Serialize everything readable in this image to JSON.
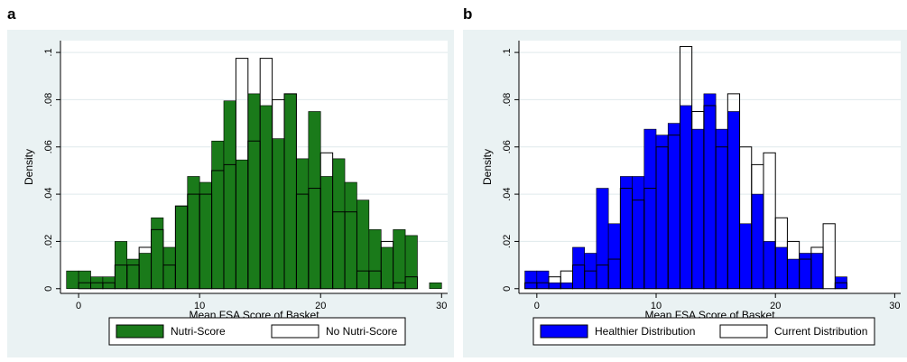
{
  "panel_letters": [
    "a",
    "b"
  ],
  "colors": {
    "panel_bg": "#eaf2f3",
    "plot_bg": "#ffffff",
    "grid": "#dfe9ec",
    "bar_outline": "#000000",
    "green": "#1a7a1a",
    "blue": "#0000ff",
    "outline_fill": "none"
  },
  "chart_data": [
    {
      "type": "histogram",
      "panel": "a",
      "xlabel": "Mean FSA Score of Basket",
      "ylabel": "Density",
      "xlim": [
        -1.5,
        30.5
      ],
      "ylim": [
        -0.002,
        0.105
      ],
      "xticks": [
        0,
        10,
        20,
        30
      ],
      "yticks": [
        0,
        0.02,
        0.04,
        0.06,
        0.08,
        0.1
      ],
      "ytick_labels": [
        "0",
        ".02",
        ".04",
        ".06",
        ".08",
        ".1"
      ],
      "grid": "horizontal",
      "legend_position": "bottom",
      "bin_start": -1,
      "bin_width": 1,
      "series": [
        {
          "name": "Nutri-Score",
          "style": "filled",
          "color": "#1a7a1a",
          "values": [
            0.0075,
            0.0075,
            0.005,
            0.005,
            0.02,
            0.0125,
            0.015,
            0.03,
            0.0175,
            0.035,
            0.0475,
            0.045,
            0.0625,
            0.0795,
            0.0545,
            0.0825,
            0.0775,
            0.0635,
            0.0825,
            0.055,
            0.075,
            0.0475,
            0.055,
            0.045,
            0.0375,
            0.025,
            0.0175,
            0.025,
            0.0225,
            0,
            0.0025
          ]
        },
        {
          "name": "No Nutri-Score",
          "style": "outline",
          "color": "none",
          "values": [
            0,
            0.0025,
            0.0025,
            0.0025,
            0.01,
            0.01,
            0.0175,
            0.025,
            0.01,
            0.035,
            0.04,
            0.04,
            0.05,
            0.0525,
            0.0975,
            0.0625,
            0.0975,
            0.08,
            0.0825,
            0.04,
            0.0425,
            0.0575,
            0.0325,
            0.0325,
            0.0075,
            0.0075,
            0.02,
            0.0025,
            0.005
          ]
        }
      ]
    },
    {
      "type": "histogram",
      "panel": "b",
      "xlabel": "Mean FSA Score of Basket",
      "ylabel": "Density",
      "xlim": [
        -1.5,
        30.5
      ],
      "ylim": [
        -0.002,
        0.105
      ],
      "xticks": [
        0,
        10,
        20,
        30
      ],
      "yticks": [
        0,
        0.02,
        0.04,
        0.06,
        0.08,
        0.1
      ],
      "ytick_labels": [
        "0",
        ".02",
        ".04",
        ".06",
        ".08",
        ".1"
      ],
      "grid": "horizontal",
      "legend_position": "bottom",
      "bin_start": -1,
      "bin_width": 1,
      "series": [
        {
          "name": "Healthier Distribution",
          "style": "filled",
          "color": "#0000ff",
          "values": [
            0.0075,
            0.0075,
            0.0025,
            0.0025,
            0.0175,
            0.015,
            0.0425,
            0.0275,
            0.0475,
            0.0475,
            0.0675,
            0.065,
            0.07,
            0.0775,
            0.0675,
            0.0825,
            0.0675,
            0.075,
            0.0275,
            0.04,
            0.02,
            0.0175,
            0.0125,
            0.015,
            0.015,
            0,
            0.005
          ]
        },
        {
          "name": "Current Distribution",
          "style": "outline",
          "color": "none",
          "values": [
            0.0025,
            0.0025,
            0.005,
            0.0075,
            0.01,
            0.0075,
            0.01,
            0.0125,
            0.0425,
            0.0375,
            0.0425,
            0.06,
            0.065,
            0.1025,
            0.075,
            0.0775,
            0.06,
            0.0825,
            0.06,
            0.0525,
            0.0575,
            0.03,
            0.02,
            0.0125,
            0.0175,
            0.0275,
            0.0025
          ]
        }
      ]
    }
  ]
}
